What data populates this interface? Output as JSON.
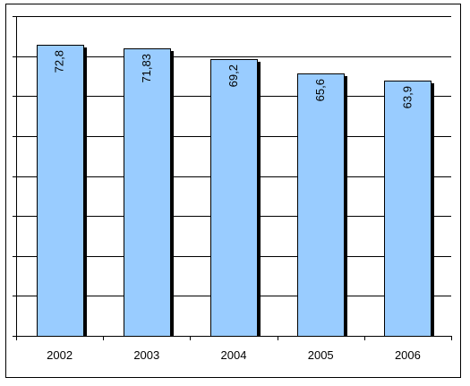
{
  "chart_data": {
    "type": "bar",
    "categories": [
      "2002",
      "2003",
      "2004",
      "2005",
      "2006"
    ],
    "values": [
      72.8,
      71.83,
      69.2,
      65.6,
      63.9
    ],
    "data_labels": [
      "72,8",
      "71,83",
      "69,2",
      "65,6",
      "63,9"
    ],
    "ylim": [
      0,
      80
    ],
    "grid": true,
    "legend": "none",
    "colors": {
      "bar": "#99CCFF",
      "bar_edge": "#000000",
      "shadow": "#000000",
      "grid": "#000000",
      "frame": "#000000",
      "background": "#FFFFFF"
    }
  }
}
